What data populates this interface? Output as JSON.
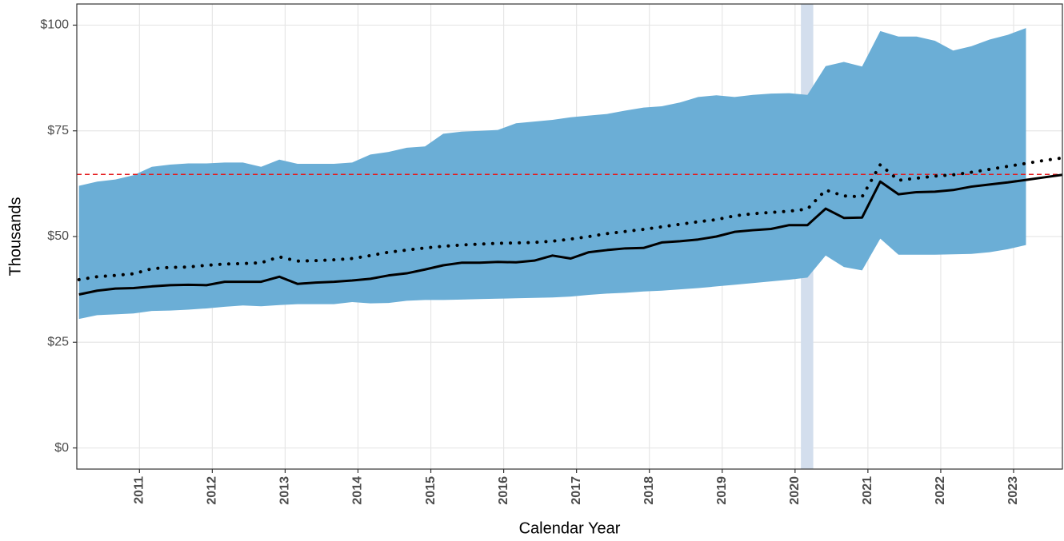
{
  "chart_data": {
    "type": "line",
    "x_label": "Calendar Year",
    "y_label": "Thousands",
    "x": [
      2010.17,
      2010.42,
      2010.67,
      2010.92,
      2011.17,
      2011.42,
      2011.67,
      2011.92,
      2012.17,
      2012.42,
      2012.67,
      2012.92,
      2013.17,
      2013.42,
      2013.67,
      2013.92,
      2014.17,
      2014.42,
      2014.67,
      2014.92,
      2015.17,
      2015.42,
      2015.67,
      2015.92,
      2016.17,
      2016.42,
      2016.67,
      2016.92,
      2017.17,
      2017.42,
      2017.67,
      2017.92,
      2018.17,
      2018.42,
      2018.67,
      2018.92,
      2019.17,
      2019.42,
      2019.67,
      2019.92,
      2020.17,
      2020.42,
      2020.67,
      2020.92,
      2021.17,
      2021.42,
      2021.67,
      2021.92,
      2022.17,
      2022.42,
      2022.67,
      2022.92,
      2023.17,
      2023.42,
      2023.67
    ],
    "band": {
      "color": "#6baed6",
      "upper": [
        62,
        63,
        63.5,
        64.5,
        66.5,
        67,
        67.3,
        67.3,
        67.5,
        67.5,
        66.5,
        68.2,
        67.2,
        67.2,
        67.2,
        67.5,
        69.4,
        70,
        71,
        71.3,
        74.3,
        74.8,
        75,
        75.2,
        76.8,
        77.2,
        77.6,
        78.2,
        78.6,
        79,
        79.8,
        80.5,
        80.8,
        81.7,
        83,
        83.4,
        83,
        83.5,
        83.8,
        83.9,
        83.5,
        90.3,
        91.3,
        90.2,
        98.6,
        97.3,
        97.3,
        96.3,
        94,
        95,
        96.6,
        97.7,
        99.3,
        null,
        null
      ],
      "lower": [
        30.5,
        31.4,
        31.6,
        31.8,
        32.4,
        32.5,
        32.7,
        33,
        33.4,
        33.7,
        33.5,
        33.8,
        34,
        34,
        34,
        34.5,
        34.2,
        34.3,
        34.8,
        35,
        35,
        35.1,
        35.2,
        35.3,
        35.4,
        35.5,
        35.6,
        35.8,
        36.2,
        36.5,
        36.7,
        37,
        37.2,
        37.5,
        37.8,
        38.2,
        38.6,
        39,
        39.4,
        39.8,
        40.3,
        45.5,
        42.8,
        42,
        49.5,
        45.7,
        45.7,
        45.7,
        45.8,
        45.9,
        46.3,
        47,
        48,
        null,
        null
      ]
    },
    "series": [
      {
        "color": "#000000",
        "style": "solid",
        "values": [
          36.3,
          37.2,
          37.7,
          37.8,
          38.2,
          38.5,
          38.6,
          38.5,
          39.3,
          39.3,
          39.3,
          40.5,
          38.8,
          39.1,
          39.3,
          39.6,
          40,
          40.8,
          41.3,
          42.2,
          43.2,
          43.8,
          43.8,
          44,
          43.9,
          44.3,
          45.5,
          44.8,
          46.3,
          46.8,
          47.2,
          47.3,
          48.6,
          48.9,
          49.3,
          50,
          51.1,
          51.5,
          51.8,
          52.7,
          52.7,
          56.6,
          54.4,
          54.5,
          63,
          60,
          60.5,
          60.6,
          61,
          61.8,
          62.3,
          62.8,
          63.4,
          64,
          64.6
        ]
      },
      {
        "color": "#000000",
        "style": "dotted",
        "values": [
          39.8,
          40.5,
          40.8,
          41.2,
          42.4,
          42.7,
          42.8,
          43.2,
          43.5,
          43.6,
          43.8,
          45.2,
          44.2,
          44.3,
          44.5,
          44.8,
          45.5,
          46.3,
          46.8,
          47.3,
          47.7,
          48,
          48.2,
          48.4,
          48.5,
          48.6,
          48.9,
          49.4,
          50,
          50.7,
          51.2,
          51.7,
          52.3,
          52.9,
          53.5,
          54,
          54.9,
          55.4,
          55.7,
          56,
          56.5,
          61,
          59.6,
          59.4,
          67,
          63.3,
          63.8,
          64.3,
          64.6,
          65.2,
          65.9,
          66.6,
          67.3,
          68,
          68.6
        ]
      }
    ],
    "hline": {
      "value": 64.7,
      "color": "#e41a1c"
    },
    "shade": {
      "x": [
        2020.08,
        2020.25
      ],
      "color": "#d3deed"
    },
    "xlim": [
      2010.14,
      2023.67
    ],
    "xticks": [
      2011,
      2012,
      2013,
      2014,
      2015,
      2016,
      2017,
      2018,
      2019,
      2020,
      2021,
      2022,
      2023
    ],
    "ylim": [
      -5,
      105
    ],
    "yticks": [
      {
        "value": 0,
        "label": "$0"
      },
      {
        "value": 25,
        "label": "$25"
      },
      {
        "value": 50,
        "label": "$50"
      },
      {
        "value": 75,
        "label": "$75"
      },
      {
        "value": 100,
        "label": "$100"
      }
    ],
    "grid": true
  }
}
